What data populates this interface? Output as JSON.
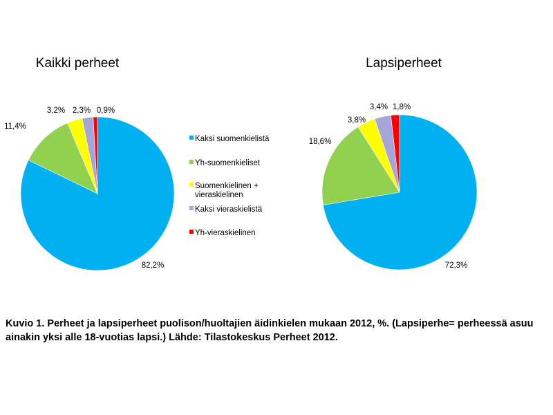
{
  "chart_data": [
    {
      "type": "pie",
      "title": "Kaikki perheet",
      "categories": [
        "Kaksi suomenkielistä",
        "Yh-suomenkieliset",
        "Suomenkielinen + vieraskielinen",
        "Kaksi vieraskielistä",
        "Yh-vieraskielinen"
      ],
      "values": [
        82.2,
        11.4,
        3.2,
        2.3,
        0.9
      ],
      "data_labels": [
        "82,2%",
        "11,4%",
        "3,2%",
        "2,3%",
        "0,9%"
      ]
    },
    {
      "type": "pie",
      "title": "Lapsiperheet",
      "categories": [
        "Kaksi suomenkielistä",
        "Yh-suomenkieliset",
        "Suomenkielinen + vieraskielinen",
        "Kaksi vieraskielistä",
        "Yh-vieraskielinen"
      ],
      "values": [
        72.3,
        18.6,
        3.8,
        3.4,
        1.8
      ],
      "data_labels": [
        "72,3%",
        "18,6%",
        "3,8%",
        "3,4%",
        "1,8%"
      ]
    }
  ],
  "legend": {
    "placement": "center",
    "items": [
      {
        "lines": [
          "Kaksi suomenkielistä"
        ],
        "color": "#00b0f0"
      },
      {
        "lines": [
          "Yh-suomenkieliset"
        ],
        "color": "#92d050"
      },
      {
        "lines": [
          "Suomenkielinen +",
          "vieraskielinen"
        ],
        "color": "#ffff00"
      },
      {
        "lines": [
          "Kaksi vieraskielistä"
        ],
        "color": "#a5a5dc"
      },
      {
        "lines": [
          "Yh-vieraskielinen"
        ],
        "color": "#ff0000"
      }
    ]
  },
  "caption": "Kuvio 1. Perheet ja lapsiperheet puolison/huoltajien äidinkielen mukaan 2012, %. (Lapsiperhe= perheessä asuu ainakin yksi alle 18-vuotias lapsi.) Lähde: Tilastokeskus Perheet 2012."
}
